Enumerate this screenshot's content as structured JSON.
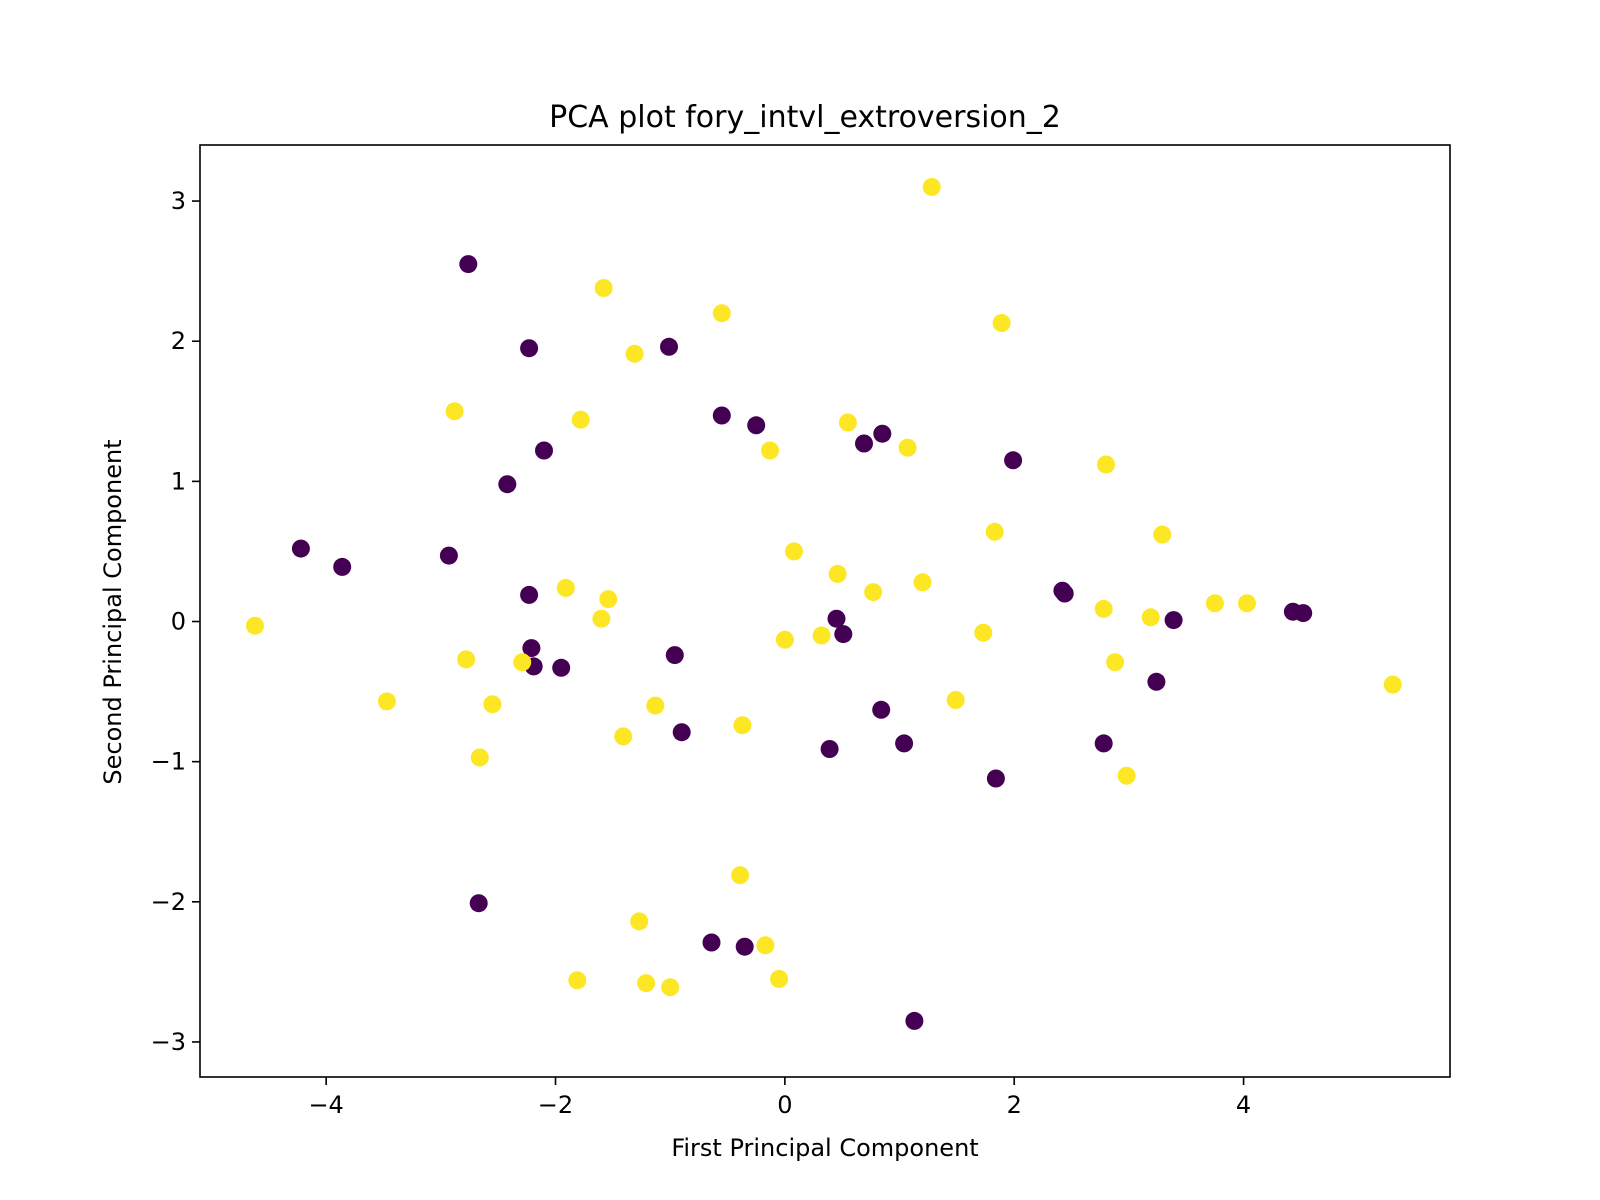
{
  "chart_data": {
    "type": "scatter",
    "title": "PCA plot fory_intvl_extroversion_2",
    "xlabel": "First Principal Component",
    "ylabel": "Second Principal Component",
    "xlim": [
      -5.1,
      5.8
    ],
    "ylim": [
      -3.25,
      3.4
    ],
    "xticks": [
      -4,
      -2,
      0,
      2,
      4
    ],
    "yticks": [
      -3,
      -2,
      -1,
      0,
      1,
      2,
      3
    ],
    "xtick_labels": [
      "−4",
      "−2",
      "0",
      "2",
      "4"
    ],
    "ytick_labels": [
      "−3",
      "−2",
      "−1",
      "0",
      "1",
      "2",
      "3"
    ],
    "grid": false,
    "legend": "none",
    "series": [
      {
        "color": "#440154",
        "points": [
          [
            -2.76,
            2.55
          ],
          [
            -2.23,
            1.95
          ],
          [
            -1.01,
            1.96
          ],
          [
            -0.55,
            1.47
          ],
          [
            -0.25,
            1.4
          ],
          [
            -2.1,
            1.22
          ],
          [
            -2.42,
            0.98
          ],
          [
            0.69,
            1.27
          ],
          [
            0.85,
            1.34
          ],
          [
            1.99,
            1.15
          ],
          [
            -4.22,
            0.52
          ],
          [
            -3.86,
            0.39
          ],
          [
            -2.93,
            0.47
          ],
          [
            -2.23,
            0.19
          ],
          [
            -2.21,
            -0.19
          ],
          [
            -2.19,
            -0.32
          ],
          [
            -1.95,
            -0.33
          ],
          [
            -0.96,
            -0.24
          ],
          [
            -0.9,
            -0.79
          ],
          [
            0.45,
            0.02
          ],
          [
            0.51,
            -0.09
          ],
          [
            0.84,
            -0.63
          ],
          [
            0.39,
            -0.91
          ],
          [
            1.04,
            -0.87
          ],
          [
            1.84,
            -1.12
          ],
          [
            2.42,
            0.22
          ],
          [
            2.44,
            0.2
          ],
          [
            3.39,
            0.01
          ],
          [
            4.43,
            0.07
          ],
          [
            4.52,
            0.06
          ],
          [
            3.24,
            -0.43
          ],
          [
            2.78,
            -0.87
          ],
          [
            -2.67,
            -2.01
          ],
          [
            -0.64,
            -2.29
          ],
          [
            -0.35,
            -2.32
          ],
          [
            1.13,
            -2.85
          ]
        ]
      },
      {
        "color": "#fde725",
        "points": [
          [
            1.28,
            3.1
          ],
          [
            -1.58,
            2.38
          ],
          [
            -0.55,
            2.2
          ],
          [
            1.89,
            2.13
          ],
          [
            -1.31,
            1.91
          ],
          [
            -2.88,
            1.5
          ],
          [
            -1.78,
            1.44
          ],
          [
            0.55,
            1.42
          ],
          [
            -0.13,
            1.22
          ],
          [
            1.07,
            1.24
          ],
          [
            2.8,
            1.12
          ],
          [
            1.83,
            0.64
          ],
          [
            3.29,
            0.62
          ],
          [
            0.08,
            0.5
          ],
          [
            0.46,
            0.34
          ],
          [
            0.77,
            0.21
          ],
          [
            1.2,
            0.28
          ],
          [
            -1.91,
            0.24
          ],
          [
            -1.54,
            0.16
          ],
          [
            -1.6,
            0.02
          ],
          [
            0.0,
            -0.13
          ],
          [
            0.32,
            -0.1
          ],
          [
            1.73,
            -0.08
          ],
          [
            2.78,
            0.09
          ],
          [
            3.19,
            0.03
          ],
          [
            3.75,
            0.13
          ],
          [
            4.03,
            0.13
          ],
          [
            -4.62,
            -0.03
          ],
          [
            -2.78,
            -0.27
          ],
          [
            -2.29,
            -0.29
          ],
          [
            -3.47,
            -0.57
          ],
          [
            -2.55,
            -0.59
          ],
          [
            -1.13,
            -0.6
          ],
          [
            -1.41,
            -0.82
          ],
          [
            -0.37,
            -0.74
          ],
          [
            -2.66,
            -0.97
          ],
          [
            1.49,
            -0.56
          ],
          [
            2.88,
            -0.29
          ],
          [
            2.98,
            -1.1
          ],
          [
            5.3,
            -0.45
          ],
          [
            -0.39,
            -1.81
          ],
          [
            -1.27,
            -2.14
          ],
          [
            -1.81,
            -2.56
          ],
          [
            -1.21,
            -2.58
          ],
          [
            -1.0,
            -2.61
          ],
          [
            -0.17,
            -2.31
          ],
          [
            -0.05,
            -2.55
          ]
        ]
      }
    ]
  }
}
